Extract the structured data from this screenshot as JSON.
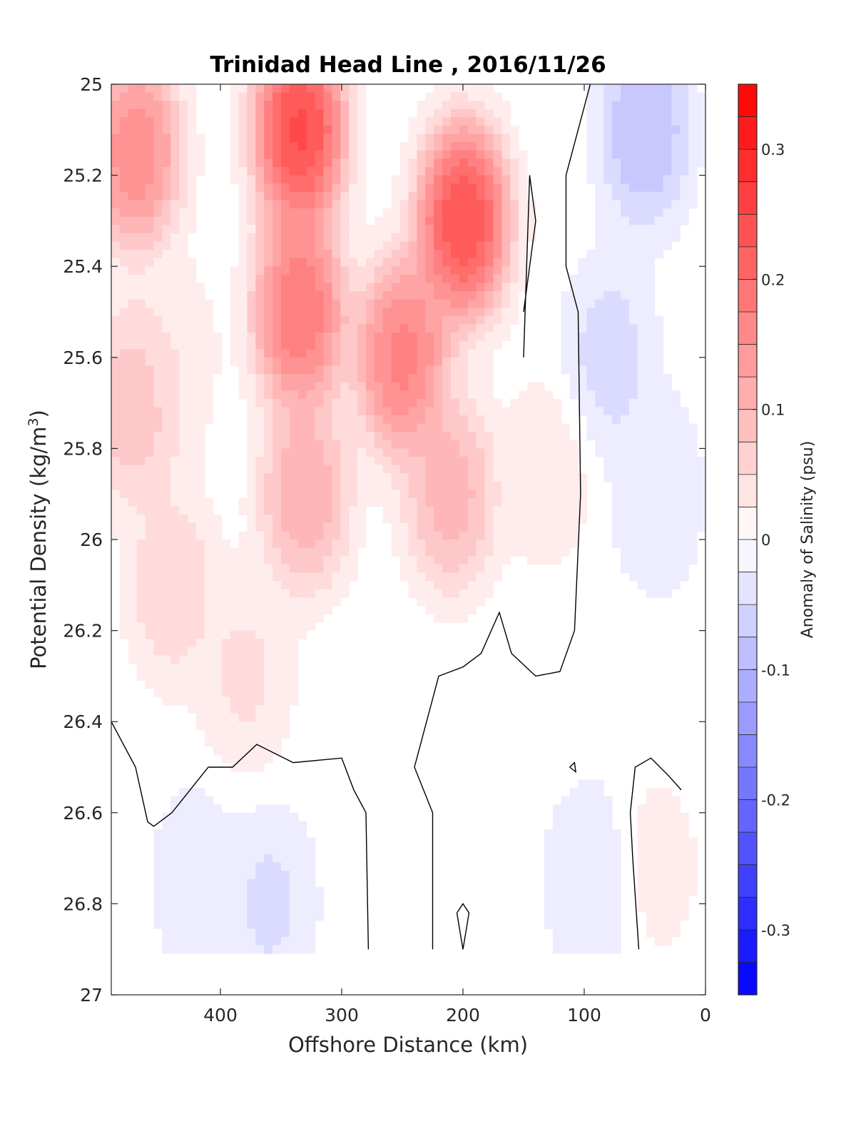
{
  "chart_data": {
    "type": "contour",
    "title": "Trinidad Head Line , 2016/11/26",
    "xlabel": "Offshore Distance (km)",
    "ylabel": "Potential Density (kg/m",
    "ylabel_sup": "3",
    "ylabel_end": ")",
    "colorbar_label": "Anomaly of Salinity (psu)",
    "xlim": [
      490,
      0
    ],
    "ylim": [
      25,
      27
    ],
    "y_reversed": true,
    "x_reversed": true,
    "xticks": [
      400,
      300,
      200,
      100,
      0
    ],
    "xtick_labels": [
      "400",
      "300",
      "200",
      "100",
      "0"
    ],
    "yticks": [
      25,
      25.2,
      25.4,
      25.6,
      25.8,
      26,
      26.2,
      26.4,
      26.6,
      26.8,
      27
    ],
    "ytick_labels": [
      "25",
      "25.2",
      "25.4",
      "25.6",
      "25.8",
      "26",
      "26.2",
      "26.4",
      "26.6",
      "26.8",
      "27"
    ],
    "clim": [
      -0.35,
      0.35
    ],
    "colorbar_levels": 28,
    "colorbar_ticks": [
      0.3,
      0.2,
      0.1,
      0,
      -0.1,
      -0.2,
      -0.3
    ],
    "colorbar_tick_labels": [
      "0.3",
      "0.2",
      "0.1",
      "0",
      "-0.1",
      "-0.2",
      "-0.3"
    ],
    "colormap": {
      "positive": "#ff0000",
      "zero": "#ffffff",
      "negative": "#0000ff"
    },
    "zero_contour_color": "#000000",
    "data_bottom_sigma": 26.9,
    "features": [
      {
        "x": 335,
        "y": 25.1,
        "anomaly": 0.34
      },
      {
        "x": 335,
        "y": 25.5,
        "anomaly": 0.26
      },
      {
        "x": 330,
        "y": 25.9,
        "anomaly": 0.15
      },
      {
        "x": 200,
        "y": 25.3,
        "anomaly": 0.33
      },
      {
        "x": 250,
        "y": 25.6,
        "anomaly": 0.24
      },
      {
        "x": 210,
        "y": 25.9,
        "anomaly": 0.14
      },
      {
        "x": 470,
        "y": 25.15,
        "anomaly": 0.22
      },
      {
        "x": 470,
        "y": 25.7,
        "anomaly": 0.12
      },
      {
        "x": 440,
        "y": 25.6,
        "anomaly": 0.04
      },
      {
        "x": 440,
        "y": 26.1,
        "anomaly": 0.08
      },
      {
        "x": 380,
        "y": 26.3,
        "anomaly": 0.06
      },
      {
        "x": 130,
        "y": 25.85,
        "anomaly": 0.04
      },
      {
        "x": 50,
        "y": 25.1,
        "anomaly": -0.12
      },
      {
        "x": 80,
        "y": 25.6,
        "anomaly": -0.07
      },
      {
        "x": 40,
        "y": 25.9,
        "anomaly": -0.05
      },
      {
        "x": 360,
        "y": 26.8,
        "anomaly": -0.06
      },
      {
        "x": 420,
        "y": 26.75,
        "anomaly": -0.04
      },
      {
        "x": 95,
        "y": 26.75,
        "anomaly": -0.05
      },
      {
        "x": 40,
        "y": 26.72,
        "anomaly": 0.03
      }
    ],
    "zero_contours": [
      [
        [
          490,
          26.4
        ],
        [
          470,
          26.5
        ],
        [
          460,
          26.62
        ],
        [
          455,
          26.63
        ],
        [
          440,
          26.6
        ],
        [
          410,
          26.5
        ],
        [
          390,
          26.5
        ],
        [
          370,
          26.45
        ],
        [
          355,
          26.47
        ],
        [
          340,
          26.49
        ],
        [
          300,
          26.48
        ],
        [
          290,
          26.55
        ],
        [
          280,
          26.6
        ],
        [
          278,
          26.9
        ]
      ],
      [
        [
          225,
          26.9
        ],
        [
          225,
          26.6
        ],
        [
          240,
          26.5
        ],
        [
          230,
          26.4
        ],
        [
          220,
          26.3
        ],
        [
          200,
          26.28
        ],
        [
          185,
          26.25
        ],
        [
          170,
          26.16
        ],
        [
          160,
          26.25
        ],
        [
          140,
          26.3
        ],
        [
          120,
          26.29
        ],
        [
          108,
          26.2
        ],
        [
          103,
          25.9
        ],
        [
          105,
          25.5
        ],
        [
          115,
          25.4
        ],
        [
          115,
          25.2
        ],
        [
          105,
          25.1
        ],
        [
          95,
          25.0
        ]
      ],
      [
        [
          150,
          25.5
        ],
        [
          140,
          25.3
        ],
        [
          145,
          25.2
        ],
        [
          150,
          25.6
        ]
      ],
      [
        [
          55,
          26.9
        ],
        [
          60,
          26.7
        ],
        [
          62,
          26.6
        ],
        [
          58,
          26.5
        ],
        [
          45,
          26.48
        ],
        [
          30,
          26.52
        ],
        [
          20,
          26.55
        ]
      ],
      [
        [
          205,
          26.82
        ],
        [
          200,
          26.8
        ],
        [
          195,
          26.82
        ],
        [
          200,
          26.9
        ],
        [
          205,
          26.82
        ]
      ],
      [
        [
          112,
          26.5
        ],
        [
          108,
          26.49
        ],
        [
          107,
          26.51
        ],
        [
          112,
          26.5
        ]
      ]
    ]
  }
}
